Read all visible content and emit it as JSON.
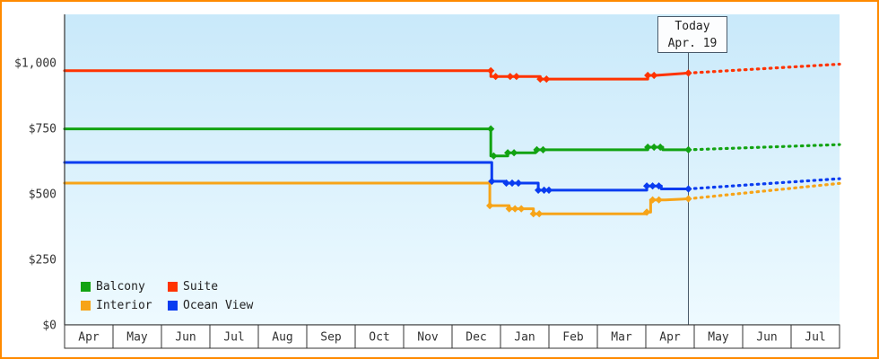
{
  "colors": {
    "frame_border": "#ff8a00",
    "plot_bg_top": "#c9e9fa",
    "plot_bg_bottom": "#eefaff",
    "axis": "#333333",
    "today_line": "#4a5a6a"
  },
  "today": {
    "label": "Today",
    "date": "Apr. 19"
  },
  "legend": [
    {
      "label": "Balcony",
      "color": "#12a312"
    },
    {
      "label": "Suite",
      "color": "#ff3300"
    },
    {
      "label": "Interior",
      "color": "#f7a418"
    },
    {
      "label": "Ocean View",
      "color": "#0a3cf0"
    }
  ],
  "chart_data": {
    "type": "line",
    "title": "",
    "xlabel": "",
    "ylabel": "",
    "ylim": [
      0,
      1000
    ],
    "grid": false,
    "legend_position": "bottom-left",
    "yticks": [
      0,
      250,
      500,
      750,
      1000
    ],
    "ytick_labels": [
      "$0",
      "$250",
      "$500",
      "$750",
      "$1,000"
    ],
    "x_months": [
      "Apr",
      "May",
      "Jun",
      "Jul",
      "Aug",
      "Sep",
      "Oct",
      "Nov",
      "Dec",
      "Jan",
      "Feb",
      "Mar",
      "Apr",
      "May",
      "Jun",
      "Jul"
    ],
    "today_index": 12.88,
    "series": [
      {
        "name": "Balcony",
        "color": "#12a312",
        "solid": [
          [
            0,
            748
          ],
          [
            8.8,
            748
          ],
          [
            8.8,
            645
          ],
          [
            9.15,
            645
          ],
          [
            9.15,
            657
          ],
          [
            9.72,
            657
          ],
          [
            9.72,
            668
          ],
          [
            12.04,
            668
          ],
          [
            12.04,
            678
          ],
          [
            12.35,
            678
          ],
          [
            12.35,
            668
          ],
          [
            12.88,
            668
          ]
        ],
        "markers": [
          [
            8.8,
            748
          ],
          [
            8.86,
            645
          ],
          [
            9.15,
            657
          ],
          [
            9.28,
            657
          ],
          [
            9.75,
            668
          ],
          [
            9.88,
            668
          ],
          [
            12.04,
            678
          ],
          [
            12.17,
            678
          ],
          [
            12.3,
            678
          ],
          [
            12.88,
            668
          ]
        ],
        "dotted": [
          [
            12.88,
            668
          ],
          [
            16,
            688
          ]
        ]
      },
      {
        "name": "Suite",
        "color": "#ff3300",
        "solid": [
          [
            0,
            970
          ],
          [
            8.8,
            970
          ],
          [
            8.8,
            948
          ],
          [
            9.82,
            948
          ],
          [
            9.82,
            938
          ],
          [
            12.04,
            938
          ],
          [
            12.04,
            952
          ],
          [
            12.2,
            952
          ],
          [
            12.88,
            961
          ]
        ],
        "markers": [
          [
            8.8,
            970
          ],
          [
            8.9,
            948
          ],
          [
            9.2,
            948
          ],
          [
            9.33,
            948
          ],
          [
            9.82,
            938
          ],
          [
            9.95,
            938
          ],
          [
            12.04,
            952
          ],
          [
            12.17,
            952
          ],
          [
            12.88,
            961
          ]
        ],
        "dotted": [
          [
            12.88,
            961
          ],
          [
            16,
            995
          ]
        ]
      },
      {
        "name": "Interior",
        "color": "#f7a418",
        "solid": [
          [
            0,
            541
          ],
          [
            8.78,
            541
          ],
          [
            8.78,
            455
          ],
          [
            9.18,
            455
          ],
          [
            9.18,
            443
          ],
          [
            9.68,
            443
          ],
          [
            9.68,
            424
          ],
          [
            12.02,
            424
          ],
          [
            12.02,
            430
          ],
          [
            12.1,
            430
          ],
          [
            12.1,
            477
          ],
          [
            12.4,
            477
          ],
          [
            12.88,
            481
          ]
        ],
        "markers": [
          [
            8.78,
            455
          ],
          [
            9.18,
            443
          ],
          [
            9.3,
            443
          ],
          [
            9.43,
            443
          ],
          [
            9.68,
            424
          ],
          [
            9.8,
            424
          ],
          [
            12.02,
            430
          ],
          [
            12.14,
            477
          ],
          [
            12.27,
            477
          ],
          [
            12.88,
            481
          ]
        ],
        "dotted": [
          [
            12.88,
            481
          ],
          [
            16,
            540
          ]
        ]
      },
      {
        "name": "Ocean View",
        "color": "#0a3cf0",
        "solid": [
          [
            0,
            620
          ],
          [
            8.82,
            620
          ],
          [
            8.82,
            548
          ],
          [
            9.12,
            548
          ],
          [
            9.12,
            541
          ],
          [
            9.78,
            541
          ],
          [
            9.78,
            514
          ],
          [
            12.02,
            514
          ],
          [
            12.02,
            530
          ],
          [
            12.32,
            530
          ],
          [
            12.32,
            519
          ],
          [
            12.88,
            519
          ]
        ],
        "markers": [
          [
            8.82,
            548
          ],
          [
            9.12,
            541
          ],
          [
            9.24,
            541
          ],
          [
            9.37,
            541
          ],
          [
            9.78,
            514
          ],
          [
            9.9,
            514
          ],
          [
            10.0,
            514
          ],
          [
            12.02,
            530
          ],
          [
            12.14,
            530
          ],
          [
            12.27,
            530
          ],
          [
            12.88,
            519
          ]
        ],
        "dotted": [
          [
            12.88,
            519
          ],
          [
            16,
            558
          ]
        ]
      }
    ]
  }
}
